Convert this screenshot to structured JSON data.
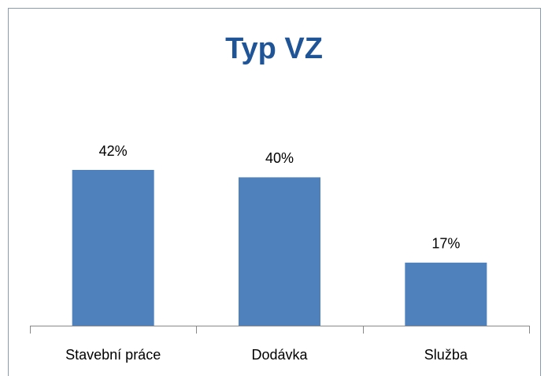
{
  "chart_data": {
    "type": "bar",
    "title": "Typ VZ",
    "categories": [
      "Stavební práce",
      "Dodávka",
      "Služba"
    ],
    "values": [
      42,
      40,
      17
    ],
    "value_labels": [
      "42%",
      "40%",
      "17%"
    ],
    "color": "#4f81bd"
  }
}
